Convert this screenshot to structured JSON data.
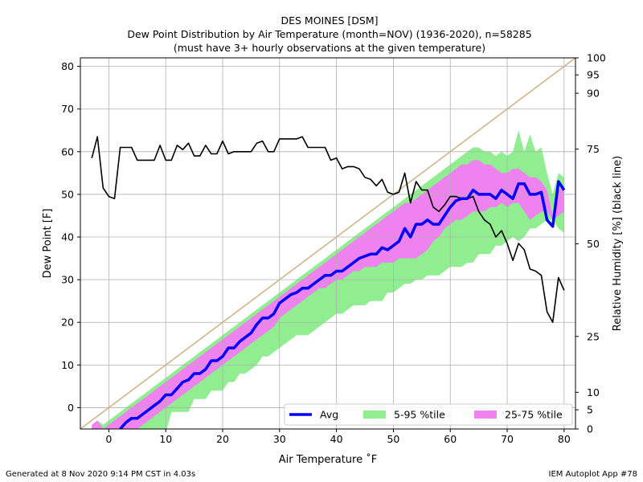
{
  "chart_data": {
    "type": "line",
    "title": [
      "DES MOINES [DSM]",
      "Dew Point Distribution by Air Temperature (month=NOV) (1936-2020), n=58285",
      "(must have 3+ hourly observations at the given temperature)"
    ],
    "xlabel": "Air Temperature ˚F",
    "ylabel": "Dew Point [F]",
    "y2label": "Relative Humidity [%] (black line)",
    "xlim": [
      -5,
      82
    ],
    "ylim": [
      -5,
      82
    ],
    "xticks": [
      0,
      10,
      20,
      30,
      40,
      50,
      60,
      70,
      80
    ],
    "yticks": [
      0,
      10,
      20,
      30,
      40,
      50,
      60,
      70,
      80
    ],
    "y2ticks": [
      {
        "label": "100",
        "dew_equiv": 82
      },
      {
        "label": "95",
        "dew_equiv": 78
      },
      {
        "label": "90",
        "dew_equiv": 73.7
      },
      {
        "label": "75",
        "dew_equiv": 60.6
      },
      {
        "label": "50",
        "dew_equiv": 38.4
      },
      {
        "label": "25",
        "dew_equiv": 16.7
      },
      {
        "label": "10",
        "dew_equiv": 3.6
      },
      {
        "label": "5",
        "dew_equiv": -0.5
      },
      {
        "label": "0",
        "dew_equiv": -5
      }
    ],
    "grid": true,
    "legend": {
      "position": "bottom-right",
      "items": [
        {
          "label": "Avg",
          "kind": "line",
          "color": "#0000ff"
        },
        {
          "label": "5-95 %tile",
          "kind": "patch",
          "color": "#90ee90"
        },
        {
          "label": "25-75 %tile",
          "kind": "patch",
          "color": "#ee82ee"
        }
      ]
    },
    "colors": {
      "avg": "#0000ff",
      "p5_95": "#90ee90",
      "p25_75": "#ee82ee",
      "rh": "#000000",
      "saturation": "#d2b48c"
    },
    "series": [
      {
        "name": "Avg",
        "x": [
          2,
          3,
          4,
          5,
          6,
          7,
          8,
          9,
          10,
          11,
          12,
          13,
          14,
          15,
          16,
          17,
          18,
          19,
          20,
          21,
          22,
          23,
          24,
          25,
          26,
          27,
          28,
          29,
          30,
          31,
          32,
          33,
          34,
          35,
          36,
          37,
          38,
          39,
          40,
          41,
          42,
          43,
          44,
          45,
          46,
          47,
          48,
          49,
          50,
          51,
          52,
          53,
          54,
          55,
          56,
          57,
          58,
          59,
          60,
          61,
          62,
          63,
          64,
          65,
          66,
          67,
          68,
          69,
          70,
          71,
          72,
          73,
          74,
          75,
          76,
          77,
          78,
          79,
          80
        ],
        "values": [
          -5,
          -3.5,
          -2.5,
          -2.5,
          -1.5,
          -0.5,
          0.5,
          1.5,
          3,
          3,
          4.5,
          6,
          6.5,
          8,
          8,
          9,
          11,
          11,
          12,
          14,
          14,
          15.5,
          16.5,
          17.5,
          19.5,
          21,
          21,
          22,
          24.5,
          25.5,
          26.5,
          27,
          28,
          28,
          29,
          30,
          31,
          31,
          32,
          32,
          33,
          34,
          35,
          35.5,
          36,
          36,
          37.5,
          37,
          38,
          39,
          42,
          40,
          43,
          43,
          44,
          43,
          43,
          45,
          47,
          48.5,
          49,
          49,
          51,
          50,
          50,
          50,
          49,
          51,
          50,
          49,
          52.5,
          52.5,
          50,
          50,
          50.5,
          44,
          42.5,
          53,
          51
        ]
      },
      {
        "name": "RH",
        "x": [
          -3,
          -2,
          -1,
          0,
          1,
          2,
          3,
          4,
          5,
          6,
          7,
          8,
          9,
          10,
          11,
          12,
          13,
          14,
          15,
          16,
          17,
          18,
          19,
          20,
          21,
          22,
          23,
          24,
          25,
          26,
          27,
          28,
          29,
          30,
          31,
          32,
          33,
          34,
          35,
          36,
          37,
          38,
          39,
          40,
          41,
          42,
          43,
          44,
          45,
          46,
          47,
          48,
          49,
          50,
          51,
          52,
          53,
          54,
          55,
          56,
          57,
          58,
          59,
          60,
          61,
          62,
          63,
          64,
          65,
          66,
          67,
          68,
          69,
          70,
          71,
          72,
          73,
          74,
          75,
          76,
          77,
          78,
          79,
          80
        ],
        "values": [
          58.5,
          63.5,
          51.5,
          49.5,
          49,
          61,
          61,
          61,
          58,
          58,
          58,
          58,
          61.5,
          58,
          58,
          61.5,
          60.5,
          62,
          59,
          59,
          61.5,
          59.5,
          59.5,
          62.5,
          59.5,
          60,
          60,
          60,
          60,
          62,
          62.5,
          60,
          60,
          63,
          63,
          63,
          63,
          63.5,
          61,
          61,
          61,
          61,
          58,
          58.5,
          56,
          56.5,
          56.5,
          56,
          54,
          53.5,
          52,
          53.5,
          50.5,
          50,
          50.5,
          55,
          48,
          53,
          51,
          51,
          47,
          46,
          47.5,
          49.5,
          49.5,
          49,
          49,
          49.5,
          46,
          44,
          43,
          40,
          41.5,
          38.5,
          34.5,
          38.5,
          37,
          32.5,
          32,
          31,
          22.5,
          20,
          30.5,
          27.5
        ]
      },
      {
        "name": "p5",
        "x": [
          -3,
          -2,
          -1,
          0,
          1,
          2,
          3,
          4,
          5,
          6,
          7,
          8,
          9,
          10,
          11,
          12,
          13,
          14,
          15,
          16,
          17,
          18,
          19,
          20,
          21,
          22,
          23,
          24,
          25,
          26,
          27,
          28,
          29,
          30,
          31,
          32,
          33,
          34,
          35,
          36,
          37,
          38,
          39,
          40,
          41,
          42,
          43,
          44,
          45,
          46,
          47,
          48,
          49,
          50,
          51,
          52,
          53,
          54,
          55,
          56,
          57,
          58,
          59,
          60,
          61,
          62,
          63,
          64,
          65,
          66,
          67,
          68,
          69,
          70,
          71,
          72,
          73,
          74,
          75,
          76,
          77,
          78,
          79,
          80
        ],
        "values": [
          -6,
          -6,
          -6,
          -6,
          -6,
          -6,
          -6,
          -6,
          -6,
          -6,
          -6,
          -6,
          -6,
          -6,
          -1,
          -1,
          -1,
          -1,
          2,
          2,
          2,
          4,
          4,
          4,
          6,
          6,
          8,
          8,
          9,
          10,
          12,
          12,
          13,
          14,
          15,
          16,
          17,
          17,
          17,
          18,
          19,
          20,
          21,
          22,
          22,
          23,
          24,
          24,
          24,
          25,
          25,
          25,
          27,
          27,
          28,
          29,
          29,
          30,
          30,
          31,
          31,
          31,
          32,
          33,
          33,
          33,
          34,
          34,
          36,
          36,
          36,
          38,
          38,
          39,
          40,
          39,
          40,
          42,
          42,
          43,
          44,
          44,
          42,
          41
        ]
      },
      {
        "name": "p95",
        "x": [
          -3,
          -2,
          -1,
          0,
          1,
          2,
          3,
          4,
          5,
          6,
          7,
          8,
          9,
          10,
          11,
          12,
          13,
          14,
          15,
          16,
          17,
          18,
          19,
          20,
          21,
          22,
          23,
          24,
          25,
          26,
          27,
          28,
          29,
          30,
          31,
          32,
          33,
          34,
          35,
          36,
          37,
          38,
          39,
          40,
          41,
          42,
          43,
          44,
          45,
          46,
          47,
          48,
          49,
          50,
          51,
          52,
          53,
          54,
          55,
          56,
          57,
          58,
          59,
          60,
          61,
          62,
          63,
          64,
          65,
          66,
          67,
          68,
          69,
          70,
          71,
          72,
          73,
          74,
          75,
          76,
          77,
          78,
          79,
          80
        ],
        "values": [
          -5,
          -3,
          -4,
          -3,
          -2,
          -1,
          0,
          1,
          2,
          3,
          4,
          5,
          6,
          7,
          8,
          9,
          10,
          11,
          12,
          13,
          14,
          15,
          16,
          17,
          18,
          19,
          20,
          21,
          22,
          23,
          24,
          25,
          26,
          27,
          28,
          29,
          30,
          31,
          32,
          33,
          34,
          35,
          36,
          37,
          38,
          39,
          40,
          41,
          42,
          43,
          44,
          45,
          46,
          47,
          48,
          49,
          50,
          51,
          52,
          53,
          54,
          55,
          56,
          57,
          58,
          59,
          60,
          61,
          61,
          60,
          60,
          59,
          60,
          59,
          60,
          65,
          60,
          64,
          60,
          61,
          55,
          50,
          55,
          54
        ]
      },
      {
        "name": "p25",
        "x": [
          -3,
          -2,
          -1,
          0,
          1,
          2,
          3,
          4,
          5,
          6,
          7,
          8,
          9,
          10,
          11,
          12,
          13,
          14,
          15,
          16,
          17,
          18,
          19,
          20,
          21,
          22,
          23,
          24,
          25,
          26,
          27,
          28,
          29,
          30,
          31,
          32,
          33,
          34,
          35,
          36,
          37,
          38,
          39,
          40,
          41,
          42,
          43,
          44,
          45,
          46,
          47,
          48,
          49,
          50,
          51,
          52,
          53,
          54,
          55,
          56,
          57,
          58,
          59,
          60,
          61,
          62,
          63,
          64,
          65,
          66,
          67,
          68,
          69,
          70,
          71,
          72,
          73,
          74,
          75,
          76,
          77,
          78,
          79,
          80
        ],
        "values": [
          -6,
          -6,
          -6,
          -6,
          -6,
          -6,
          -6,
          -5,
          -5,
          -4,
          -3,
          -2,
          -1,
          0,
          1,
          2,
          3,
          4,
          5,
          6,
          7,
          8,
          9,
          10,
          11,
          12,
          13,
          14,
          15,
          16,
          17,
          18,
          19,
          21,
          22,
          23,
          24,
          25,
          26,
          27,
          28,
          28,
          29,
          30,
          30,
          31,
          32,
          32,
          33,
          33,
          33,
          34,
          34,
          34,
          35,
          35,
          35,
          35,
          36,
          37,
          39,
          40,
          42,
          43,
          44,
          44,
          45,
          46,
          46,
          46,
          47,
          47,
          48,
          47,
          48,
          48,
          46,
          44,
          45,
          46,
          46,
          44,
          45,
          46
        ]
      },
      {
        "name": "p75",
        "x": [
          -3,
          -2,
          -1,
          0,
          1,
          2,
          3,
          4,
          5,
          6,
          7,
          8,
          9,
          10,
          11,
          12,
          13,
          14,
          15,
          16,
          17,
          18,
          19,
          20,
          21,
          22,
          23,
          24,
          25,
          26,
          27,
          28,
          29,
          30,
          31,
          32,
          33,
          34,
          35,
          36,
          37,
          38,
          39,
          40,
          41,
          42,
          43,
          44,
          45,
          46,
          47,
          48,
          49,
          50,
          51,
          52,
          53,
          54,
          55,
          56,
          57,
          58,
          59,
          60,
          61,
          62,
          63,
          64,
          65,
          66,
          67,
          68,
          69,
          70,
          71,
          72,
          73,
          74,
          75,
          76,
          77,
          78,
          79,
          80
        ],
        "values": [
          -4,
          -3,
          -5,
          -4,
          -3,
          -2,
          -1,
          0,
          1,
          2,
          3,
          4,
          5,
          6,
          7,
          8,
          9,
          10,
          11,
          12,
          13,
          14,
          15,
          16,
          17,
          18,
          19,
          20,
          21,
          22,
          23,
          24,
          25,
          26,
          27,
          28,
          29,
          30,
          31,
          32,
          33,
          34,
          35,
          36,
          37,
          38,
          39,
          40,
          41,
          42,
          43,
          44,
          45,
          46,
          47,
          48,
          48,
          49,
          50,
          51,
          52,
          53,
          54,
          55,
          56,
          57,
          57,
          58,
          58,
          57,
          57,
          56,
          55,
          55,
          56,
          56,
          55,
          54,
          54,
          53,
          51,
          45,
          51,
          52
        ]
      }
    ]
  },
  "footer": {
    "left": "Generated at 8 Nov 2020 9:14 PM CST in 4.03s",
    "right": "IEM Autoplot App #78"
  }
}
